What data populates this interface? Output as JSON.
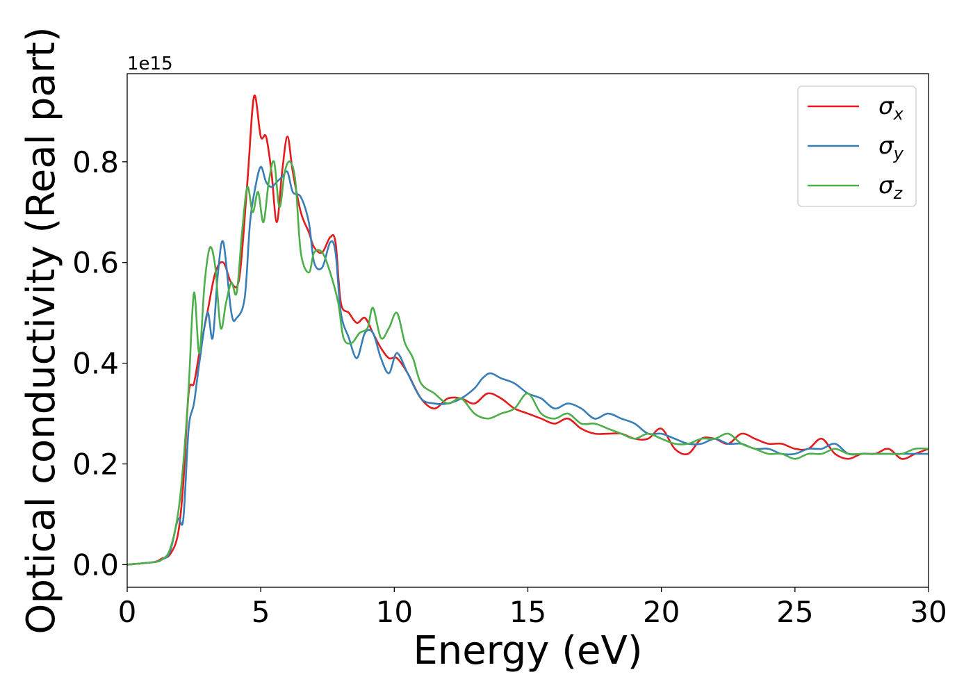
{
  "chart_data": {
    "type": "line",
    "xlabel": "Energy (eV)",
    "ylabel": "Optical conductivity (Real part)",
    "y_offset_text": "1e15",
    "xlim": [
      0,
      30
    ],
    "ylim": [
      -0.045,
      0.975
    ],
    "xticks": [
      0,
      5,
      10,
      15,
      20,
      25,
      30
    ],
    "yticks": [
      0.0,
      0.2,
      0.4,
      0.6,
      0.8
    ],
    "ytick_labels": [
      "0.0",
      "0.2",
      "0.4",
      "0.6",
      "0.8"
    ],
    "grid": false,
    "legend_position": "upper-right",
    "series": [
      {
        "name": "σx",
        "legend_symbol": "σ",
        "legend_subscript": "x",
        "color": "#e41a1c",
        "x": [
          0,
          1.0,
          1.3,
          1.6,
          1.9,
          2.1,
          2.3,
          2.5,
          2.7,
          3.0,
          3.3,
          3.6,
          3.9,
          4.2,
          4.5,
          4.75,
          5.0,
          5.2,
          5.4,
          5.6,
          5.8,
          6.0,
          6.2,
          6.5,
          6.8,
          7.0,
          7.3,
          7.6,
          7.8,
          8.0,
          8.3,
          8.6,
          8.9,
          9.2,
          9.5,
          9.8,
          10.1,
          10.5,
          11.0,
          11.5,
          12.0,
          12.5,
          13.0,
          13.5,
          14.0,
          14.5,
          15.0,
          15.5,
          16.0,
          16.5,
          17.0,
          17.5,
          18.0,
          18.5,
          19.0,
          19.5,
          20.0,
          20.5,
          21.0,
          21.5,
          22.0,
          22.5,
          23.0,
          23.5,
          24.0,
          24.5,
          25.0,
          25.5,
          26.0,
          26.5,
          27.0,
          27.5,
          28.0,
          28.5,
          29.0,
          29.5,
          30.0
        ],
        "y": [
          0.0,
          0.005,
          0.012,
          0.02,
          0.06,
          0.16,
          0.34,
          0.36,
          0.42,
          0.5,
          0.58,
          0.6,
          0.56,
          0.57,
          0.76,
          0.93,
          0.85,
          0.85,
          0.78,
          0.68,
          0.78,
          0.85,
          0.78,
          0.7,
          0.66,
          0.63,
          0.62,
          0.65,
          0.64,
          0.52,
          0.5,
          0.48,
          0.49,
          0.46,
          0.43,
          0.41,
          0.41,
          0.38,
          0.33,
          0.31,
          0.33,
          0.33,
          0.32,
          0.34,
          0.33,
          0.31,
          0.3,
          0.29,
          0.28,
          0.29,
          0.27,
          0.26,
          0.26,
          0.26,
          0.25,
          0.25,
          0.27,
          0.23,
          0.22,
          0.25,
          0.25,
          0.24,
          0.26,
          0.25,
          0.24,
          0.24,
          0.23,
          0.23,
          0.25,
          0.22,
          0.21,
          0.22,
          0.22,
          0.23,
          0.21,
          0.22,
          0.23
        ]
      },
      {
        "name": "σy",
        "legend_symbol": "σ",
        "legend_subscript": "y",
        "color": "#377eb8",
        "x": [
          0,
          1.0,
          1.3,
          1.6,
          1.9,
          2.1,
          2.3,
          2.5,
          2.7,
          3.0,
          3.2,
          3.4,
          3.6,
          3.9,
          4.1,
          4.4,
          4.6,
          4.8,
          5.0,
          5.2,
          5.4,
          5.6,
          5.8,
          6.0,
          6.2,
          6.5,
          6.8,
          7.0,
          7.3,
          7.6,
          7.8,
          8.0,
          8.3,
          8.6,
          8.9,
          9.2,
          9.5,
          9.8,
          10.1,
          10.5,
          11.0,
          11.5,
          12.0,
          12.5,
          13.0,
          13.3,
          13.6,
          14.0,
          14.5,
          15.0,
          15.5,
          16.0,
          16.5,
          17.0,
          17.5,
          18.0,
          18.5,
          19.0,
          19.5,
          20.0,
          20.5,
          21.0,
          21.5,
          22.0,
          22.5,
          23.0,
          23.5,
          24.0,
          24.5,
          25.0,
          25.5,
          26.0,
          26.5,
          27.0,
          27.5,
          28.0,
          28.5,
          29.0,
          29.5,
          30.0
        ],
        "y": [
          0.0,
          0.005,
          0.01,
          0.025,
          0.09,
          0.09,
          0.27,
          0.32,
          0.4,
          0.5,
          0.45,
          0.58,
          0.64,
          0.5,
          0.49,
          0.53,
          0.68,
          0.75,
          0.79,
          0.76,
          0.75,
          0.76,
          0.77,
          0.78,
          0.74,
          0.73,
          0.68,
          0.6,
          0.59,
          0.64,
          0.62,
          0.5,
          0.45,
          0.41,
          0.46,
          0.46,
          0.41,
          0.38,
          0.42,
          0.38,
          0.33,
          0.32,
          0.32,
          0.33,
          0.35,
          0.37,
          0.38,
          0.37,
          0.36,
          0.34,
          0.33,
          0.31,
          0.32,
          0.31,
          0.29,
          0.3,
          0.29,
          0.28,
          0.26,
          0.26,
          0.25,
          0.24,
          0.24,
          0.25,
          0.24,
          0.24,
          0.23,
          0.23,
          0.22,
          0.22,
          0.23,
          0.23,
          0.24,
          0.22,
          0.22,
          0.22,
          0.22,
          0.22,
          0.22,
          0.22
        ]
      },
      {
        "name": "σz",
        "legend_symbol": "σ",
        "legend_subscript": "z",
        "color": "#4daf4a",
        "x": [
          0,
          1.0,
          1.3,
          1.6,
          1.9,
          2.1,
          2.3,
          2.5,
          2.7,
          2.9,
          3.1,
          3.3,
          3.5,
          3.7,
          3.9,
          4.1,
          4.3,
          4.5,
          4.7,
          4.9,
          5.1,
          5.3,
          5.5,
          5.7,
          5.9,
          6.1,
          6.3,
          6.5,
          6.8,
          7.0,
          7.3,
          7.6,
          7.9,
          8.1,
          8.4,
          8.7,
          9.0,
          9.2,
          9.5,
          9.8,
          10.1,
          10.4,
          10.7,
          11.0,
          11.5,
          12.0,
          12.5,
          13.0,
          13.5,
          14.0,
          14.5,
          15.0,
          15.5,
          16.0,
          16.5,
          17.0,
          17.5,
          18.0,
          18.5,
          19.0,
          19.5,
          20.0,
          20.5,
          21.0,
          21.5,
          22.0,
          22.5,
          23.0,
          23.5,
          24.0,
          24.5,
          25.0,
          25.5,
          26.0,
          26.5,
          27.0,
          27.5,
          28.0,
          28.5,
          29.0,
          29.5,
          30.0
        ],
        "y": [
          0.0,
          0.005,
          0.01,
          0.03,
          0.1,
          0.2,
          0.35,
          0.54,
          0.42,
          0.56,
          0.63,
          0.59,
          0.47,
          0.52,
          0.56,
          0.54,
          0.66,
          0.75,
          0.7,
          0.74,
          0.68,
          0.76,
          0.8,
          0.71,
          0.78,
          0.8,
          0.76,
          0.62,
          0.58,
          0.62,
          0.62,
          0.58,
          0.52,
          0.45,
          0.44,
          0.46,
          0.47,
          0.51,
          0.45,
          0.47,
          0.5,
          0.44,
          0.41,
          0.36,
          0.34,
          0.32,
          0.33,
          0.3,
          0.29,
          0.3,
          0.31,
          0.34,
          0.3,
          0.29,
          0.3,
          0.28,
          0.28,
          0.27,
          0.26,
          0.25,
          0.26,
          0.25,
          0.24,
          0.24,
          0.25,
          0.25,
          0.26,
          0.24,
          0.23,
          0.22,
          0.22,
          0.21,
          0.22,
          0.22,
          0.23,
          0.22,
          0.22,
          0.22,
          0.22,
          0.22,
          0.23,
          0.23
        ]
      }
    ]
  }
}
